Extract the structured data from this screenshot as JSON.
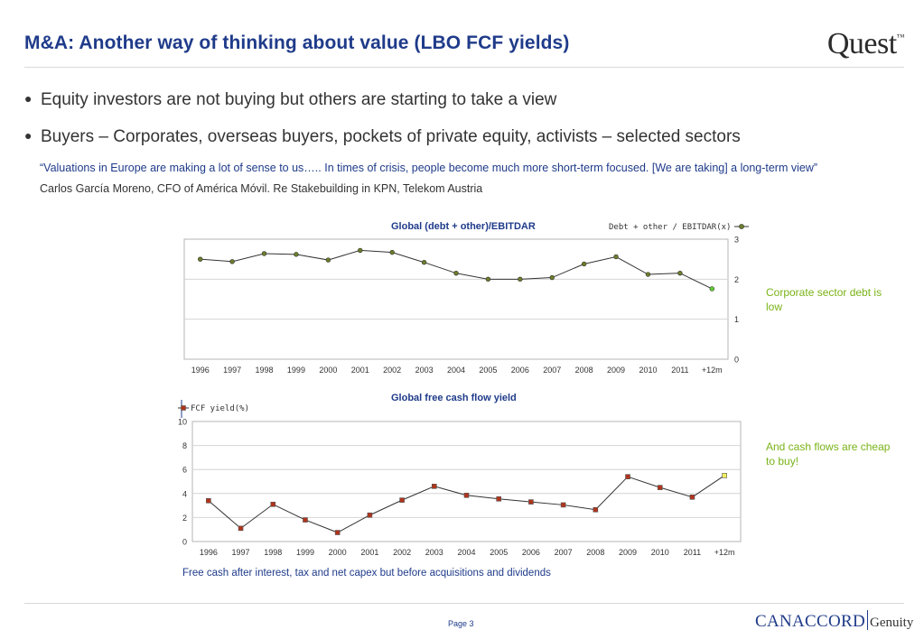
{
  "header": {
    "title": "M&A: Another way of thinking about value (LBO FCF yields)",
    "logo": "Quest",
    "logo_mark": "™"
  },
  "bullets": [
    "Equity investors are not buying but others are starting to take a view",
    "Buyers – Corporates, overseas buyers, pockets of private equity, activists – selected sectors"
  ],
  "quote": "“Valuations in Europe are making a lot of sense to us….. In times of crisis, people become much more short-term focused. [We are taking] a long-term view”",
  "attribution": "Carlos García Moreno, CFO of América Móvil. Re Stakebuilding in KPN, Telekom Austria",
  "chart_data": [
    {
      "type": "line",
      "title": "Global (debt + other)/EBITDAR",
      "legend": "Debt + other / EBITDAR(x)",
      "legend_position": "top-right",
      "y_axis_side": "right",
      "categories": [
        "1996",
        "1997",
        "1998",
        "1999",
        "2000",
        "2001",
        "2002",
        "2003",
        "2004",
        "2005",
        "2006",
        "2007",
        "2008",
        "2009",
        "2010",
        "2011",
        "+12m"
      ],
      "values": [
        2.5,
        2.44,
        2.64,
        2.62,
        2.48,
        2.72,
        2.67,
        2.42,
        2.15,
        2.0,
        2.0,
        2.04,
        2.38,
        2.56,
        2.12,
        2.15,
        1.76
      ],
      "ylim": [
        0,
        3
      ],
      "yticks": [
        0,
        1,
        2,
        3
      ],
      "grid": true,
      "colors": {
        "line": "#333333",
        "marker": "#6b7f2a",
        "last_marker": "#5fd12f"
      }
    },
    {
      "type": "line",
      "title": "Global free cash flow yield",
      "legend": "FCF yield(%)",
      "legend_position": "top-left",
      "y_axis_side": "left",
      "categories": [
        "1996",
        "1997",
        "1998",
        "1999",
        "2000",
        "2001",
        "2002",
        "2003",
        "2004",
        "2005",
        "2006",
        "2007",
        "2008",
        "2009",
        "2010",
        "2011",
        "+12m"
      ],
      "values": [
        3.4,
        1.1,
        3.1,
        1.8,
        0.75,
        2.2,
        3.45,
        4.6,
        3.85,
        3.55,
        3.3,
        3.05,
        2.65,
        5.4,
        4.5,
        3.7,
        5.5
      ],
      "ylim": [
        0,
        10
      ],
      "yticks": [
        0,
        2,
        4,
        6,
        8,
        10
      ],
      "grid": true,
      "colors": {
        "line": "#333333",
        "marker": "#b0341c",
        "last_marker": "#f0f060"
      }
    }
  ],
  "notes": {
    "debt_note": "Corporate sector debt is low",
    "fcf_note": "And cash flows are cheap to buy!",
    "footnote": "Free cash after interest, tax and net capex but before acquisitions and dividends"
  },
  "footer": {
    "page": "Page 3",
    "logo_a": "CANACCORD",
    "logo_b": "Genuity"
  }
}
